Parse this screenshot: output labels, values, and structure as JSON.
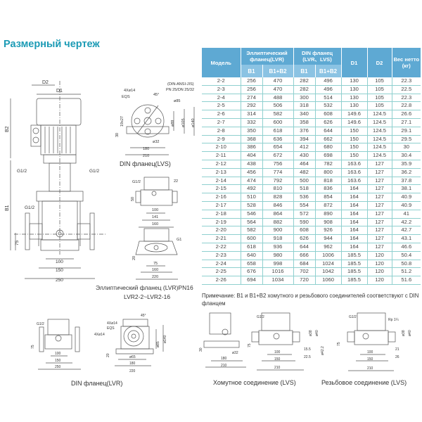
{
  "title": "Размерный чертеж",
  "table": {
    "headers": {
      "model": "Модель",
      "elliptic": "Эллиптический фланец(LVR)",
      "din": "DIN фланец (LVR、LVS)",
      "d1": "D1",
      "d2": "D2",
      "weight": "Вес нетто (кг)",
      "b1": "B1",
      "b1b2": "B1+B2"
    },
    "rows": [
      [
        "2-2",
        "256",
        "470",
        "282",
        "496",
        "130",
        "105",
        "22.3"
      ],
      [
        "2-3",
        "256",
        "470",
        "282",
        "496",
        "130",
        "105",
        "22.5"
      ],
      [
        "2-4",
        "274",
        "488",
        "300",
        "514",
        "130",
        "105",
        "22.3"
      ],
      [
        "2-5",
        "292",
        "506",
        "318",
        "532",
        "130",
        "105",
        "22.8"
      ],
      [
        "2-6",
        "314",
        "582",
        "340",
        "608",
        "149.6",
        "124.5",
        "26.6"
      ],
      [
        "2-7",
        "332",
        "600",
        "358",
        "626",
        "149.6",
        "124.5",
        "27.1"
      ],
      [
        "2-8",
        "350",
        "618",
        "376",
        "644",
        "150",
        "124.5",
        "29.1"
      ],
      [
        "2-9",
        "368",
        "636",
        "394",
        "662",
        "150",
        "124.5",
        "29.5"
      ],
      [
        "2-10",
        "386",
        "654",
        "412",
        "680",
        "150",
        "124.5",
        "30"
      ],
      [
        "2-11",
        "404",
        "672",
        "430",
        "698",
        "150",
        "124.5",
        "30.4"
      ],
      [
        "2-12",
        "438",
        "756",
        "464",
        "782",
        "163.6",
        "127",
        "35.9"
      ],
      [
        "2-13",
        "456",
        "774",
        "482",
        "800",
        "163.6",
        "127",
        "36.2"
      ],
      [
        "2-14",
        "474",
        "792",
        "500",
        "818",
        "163.6",
        "127",
        "37.8"
      ],
      [
        "2-15",
        "492",
        "810",
        "518",
        "836",
        "164",
        "127",
        "38.1"
      ],
      [
        "2-16",
        "510",
        "828",
        "536",
        "854",
        "164",
        "127",
        "40.9"
      ],
      [
        "2-17",
        "528",
        "846",
        "554",
        "872",
        "164",
        "127",
        "40.9"
      ],
      [
        "2-18",
        "546",
        "864",
        "572",
        "890",
        "164",
        "127",
        "41"
      ],
      [
        "2-19",
        "564",
        "882",
        "590",
        "908",
        "164",
        "127",
        "42.2"
      ],
      [
        "2-20",
        "582",
        "900",
        "608",
        "926",
        "164",
        "127",
        "42.7"
      ],
      [
        "2-21",
        "600",
        "918",
        "626",
        "944",
        "164",
        "127",
        "43.1"
      ],
      [
        "2-22",
        "618",
        "936",
        "644",
        "962",
        "164",
        "127",
        "46.6"
      ],
      [
        "2-23",
        "640",
        "980",
        "666",
        "1006",
        "185.5",
        "120",
        "50.4"
      ],
      [
        "2-24",
        "658",
        "998",
        "684",
        "1024",
        "185.5",
        "120",
        "50.8"
      ],
      [
        "2-25",
        "676",
        "1016",
        "702",
        "1042",
        "185.5",
        "120",
        "51.2"
      ],
      [
        "2-26",
        "694",
        "1034",
        "720",
        "1060",
        "185.5",
        "120",
        "51.6"
      ]
    ],
    "note": "Примечание: B1 и B1+B2 хомутного и резьбового соединителей соответствуют с DIN фланцем"
  },
  "captions": {
    "din_lvs": "DIN фланец(LVS)",
    "elliptic": "Эллиптический фланец (LVR)PN16",
    "elliptic_range": "LVR2-2~LVR2-16",
    "din_lvr": "DIN фланец(LVR)",
    "clamp": "Хомутное соединение (LVS)",
    "thread": "Резьбовое соединение (LVS)"
  },
  "labels": {
    "main": {
      "d2": "D2",
      "d1": "D1",
      "b2": "B2",
      "b1": "B1",
      "g1": "G1/2",
      "g2": "G1/2",
      "g3": "G1/2",
      "h75": "75",
      "w100": "100",
      "w150": "150",
      "w250": "250"
    },
    "din_lvs": {
      "std": "(DIN-ANSI-JIS)",
      "pn": "PN 25/DN 25/32",
      "holes": "4Xø14",
      "eqs": "EQS",
      "angle": "45°",
      "d85": "ø85",
      "d89": "ø89",
      "d105": "ø105",
      "d140": "ø140",
      "h19": "19x27",
      "h30": "30",
      "d32": "ø32",
      "w180": "180",
      "w210": "210"
    },
    "ell_top": {
      "g": "G1/2",
      "w22": "22",
      "h50": "50",
      "w100": "100",
      "w141": "141",
      "w160": "160"
    },
    "ell_bot": {
      "g": "G1",
      "h20": "20",
      "w75": "75",
      "w160": "160",
      "w220": "220"
    },
    "lvr_side": {
      "g": "G1/2",
      "h75": "75",
      "w100": "100",
      "w150": "150",
      "w250": "250"
    },
    "lvr_top": {
      "holes1": "4Xø14",
      "eqs": "EQS",
      "holes2": "4Xø14",
      "angle": "45°",
      "d140": "ø140",
      "d85v": "ø85",
      "h20": "20",
      "d65": "ø65",
      "w180": "180",
      "w220": "220"
    },
    "clamp_a": {
      "h30": "30",
      "d32": "ø32",
      "w180": "180",
      "w210": "210"
    },
    "clamp_b": {
      "g": "G1/2",
      "h75": "75",
      "d38": "ø38",
      "d40": "ø40",
      "d42": "ø42.2",
      "w15": "15.5",
      "w22": "22.5",
      "w100": "100",
      "w150": "150",
      "w210": "210"
    },
    "thread": {
      "g": "G1/2",
      "rp": "Rp 1¼",
      "h75": "75",
      "d38": "ø38",
      "d40": "ø40",
      "w21": "21",
      "w26": "26",
      "w100": "100",
      "w150": "150",
      "w210": "210"
    }
  },
  "colors": {
    "title": "#1c9bb5",
    "header": "#5ea9d3",
    "subheader": "#8bc3e3",
    "grid": "#8fd0cf"
  }
}
